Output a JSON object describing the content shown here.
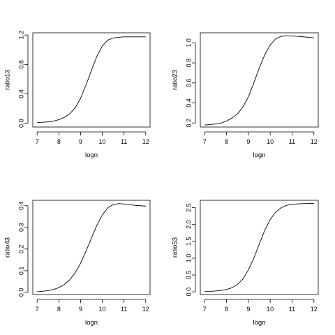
{
  "chart_data": [
    {
      "type": "line",
      "xlabel": "logn",
      "ylabel": "ratio13",
      "xlim": [
        6.8,
        12.2
      ],
      "ylim": [
        -0.05,
        1.23
      ],
      "xticks": [
        7,
        8,
        9,
        10,
        11,
        12
      ],
      "yticks": [
        0.0,
        0.4,
        0.8,
        1.2
      ],
      "ytick_labels": [
        "0.0",
        "0.4",
        "0.8",
        "1.2"
      ],
      "x": [
        7.0,
        7.25,
        7.5,
        7.75,
        8.0,
        8.25,
        8.5,
        8.75,
        9.0,
        9.25,
        9.5,
        9.75,
        10.0,
        10.25,
        10.5,
        10.75,
        11.0,
        11.25,
        11.5,
        11.75,
        12.0
      ],
      "y": [
        0.01,
        0.015,
        0.02,
        0.03,
        0.05,
        0.08,
        0.13,
        0.21,
        0.34,
        0.52,
        0.72,
        0.91,
        1.05,
        1.13,
        1.16,
        1.17,
        1.175,
        1.175,
        1.175,
        1.175,
        1.175
      ]
    },
    {
      "type": "line",
      "xlabel": "logn",
      "ylabel": "ratio23",
      "xlim": [
        6.8,
        12.2
      ],
      "ylim": [
        0.16,
        1.1
      ],
      "xticks": [
        7,
        8,
        9,
        10,
        11,
        12
      ],
      "yticks": [
        0.2,
        0.4,
        0.6,
        0.8,
        1.0
      ],
      "ytick_labels": [
        "0.2",
        "0.4",
        "0.6",
        "0.8",
        "1.0"
      ],
      "x": [
        7.0,
        7.25,
        7.5,
        7.75,
        8.0,
        8.25,
        8.5,
        8.75,
        9.0,
        9.25,
        9.5,
        9.75,
        10.0,
        10.25,
        10.5,
        10.75,
        11.0,
        11.25,
        11.5,
        11.75,
        12.0
      ],
      "y": [
        0.18,
        0.185,
        0.19,
        0.2,
        0.22,
        0.25,
        0.29,
        0.36,
        0.46,
        0.6,
        0.75,
        0.88,
        0.98,
        1.04,
        1.065,
        1.07,
        1.068,
        1.065,
        1.06,
        1.055,
        1.05
      ]
    },
    {
      "type": "line",
      "xlabel": "logn",
      "ylabel": "ratio43",
      "xlim": [
        6.8,
        12.2
      ],
      "ylim": [
        -0.01,
        0.425
      ],
      "xticks": [
        7,
        8,
        9,
        10,
        11,
        12
      ],
      "yticks": [
        0.0,
        0.1,
        0.2,
        0.3,
        0.4
      ],
      "ytick_labels": [
        "0.0",
        "0.1",
        "0.2",
        "0.3",
        "0.4"
      ],
      "x": [
        7.0,
        7.25,
        7.5,
        7.75,
        8.0,
        8.25,
        8.5,
        8.75,
        9.0,
        9.25,
        9.5,
        9.75,
        10.0,
        10.25,
        10.5,
        10.75,
        11.0,
        11.25,
        11.5,
        11.75,
        12.0
      ],
      "y": [
        0.003,
        0.005,
        0.008,
        0.013,
        0.022,
        0.036,
        0.058,
        0.09,
        0.134,
        0.19,
        0.25,
        0.31,
        0.357,
        0.39,
        0.405,
        0.41,
        0.408,
        0.405,
        0.402,
        0.4,
        0.398
      ]
    },
    {
      "type": "line",
      "xlabel": "logn",
      "ylabel": "ratio53",
      "xlim": [
        6.8,
        12.2
      ],
      "ylim": [
        -0.08,
        2.72
      ],
      "xticks": [
        7,
        8,
        9,
        10,
        11,
        12
      ],
      "yticks": [
        0.0,
        0.5,
        1.0,
        1.5,
        2.0,
        2.5
      ],
      "ytick_labels": [
        "0.0",
        "0.5",
        "1.0",
        "1.5",
        "2.0",
        "2.5"
      ],
      "x": [
        7.0,
        7.25,
        7.5,
        7.75,
        8.0,
        8.25,
        8.5,
        8.75,
        9.0,
        9.25,
        9.5,
        9.75,
        10.0,
        10.25,
        10.5,
        10.75,
        11.0,
        11.25,
        11.5,
        11.75,
        12.0
      ],
      "y": [
        0.01,
        0.015,
        0.025,
        0.04,
        0.07,
        0.12,
        0.22,
        0.38,
        0.65,
        1.0,
        1.42,
        1.83,
        2.15,
        2.37,
        2.5,
        2.57,
        2.6,
        2.615,
        2.62,
        2.625,
        2.625
      ]
    }
  ]
}
